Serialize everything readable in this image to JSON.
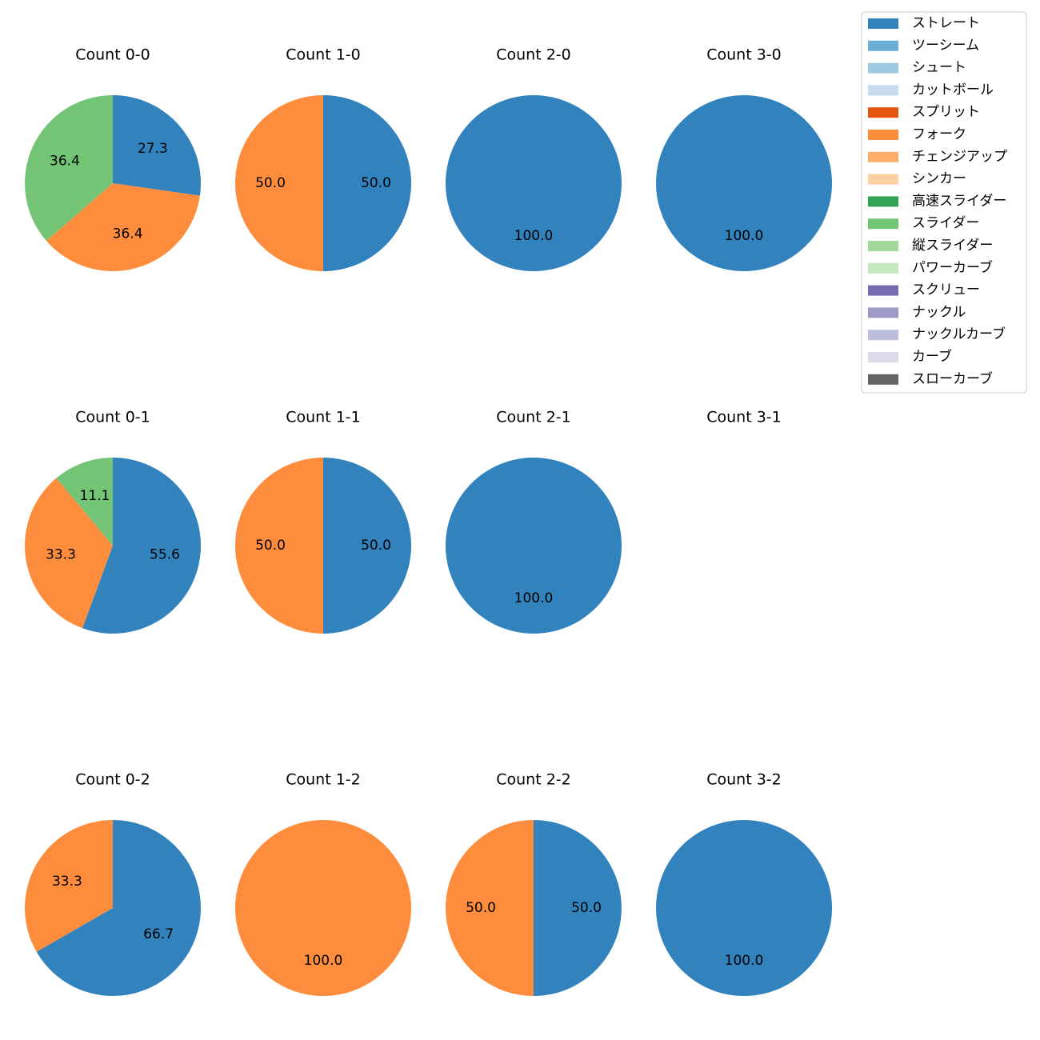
{
  "chart_data": [
    {
      "type": "pie",
      "title": "Count 0-0",
      "categories": [
        "ストレート",
        "フォーク",
        "スライダー"
      ],
      "values": [
        27.3,
        36.4,
        36.4
      ]
    },
    {
      "type": "pie",
      "title": "Count 1-0",
      "categories": [
        "ストレート",
        "フォーク"
      ],
      "values": [
        50,
        50
      ],
      "value_labels": [
        "50.0",
        "50.0"
      ]
    },
    {
      "type": "pie",
      "title": "Count 2-0",
      "categories": [
        "ストレート"
      ],
      "values": [
        100
      ],
      "value_labels": [
        "100.0"
      ]
    },
    {
      "type": "pie",
      "title": "Count 3-0",
      "categories": [
        "ストレート"
      ],
      "values": [
        100
      ],
      "value_labels": [
        "100.0"
      ]
    },
    {
      "type": "pie",
      "title": "Count 0-1",
      "categories": [
        "ストレート",
        "フォーク",
        "スライダー"
      ],
      "values": [
        55.6,
        33.3,
        11.1
      ]
    },
    {
      "type": "pie",
      "title": "Count 1-1",
      "categories": [
        "ストレート",
        "フォーク"
      ],
      "values": [
        50,
        50
      ],
      "value_labels": [
        "50.0",
        "50.0"
      ]
    },
    {
      "type": "pie",
      "title": "Count 2-1",
      "categories": [
        "ストレート"
      ],
      "values": [
        100
      ],
      "value_labels": [
        "100.0"
      ]
    },
    {
      "type": "pie",
      "title": "Count 3-1",
      "categories": [],
      "values": []
    },
    {
      "type": "pie",
      "title": "Count 0-2",
      "categories": [
        "ストレート",
        "フォーク"
      ],
      "values": [
        66.7,
        33.3
      ]
    },
    {
      "type": "pie",
      "title": "Count 1-2",
      "categories": [
        "フォーク"
      ],
      "values": [
        100
      ],
      "value_labels": [
        "100.0"
      ]
    },
    {
      "type": "pie",
      "title": "Count 2-2",
      "categories": [
        "ストレート",
        "フォーク"
      ],
      "values": [
        50,
        50
      ],
      "value_labels": [
        "50.0",
        "50.0"
      ]
    },
    {
      "type": "pie",
      "title": "Count 3-2",
      "categories": [
        "ストレート"
      ],
      "values": [
        100
      ],
      "value_labels": [
        "100.0"
      ]
    }
  ],
  "legend": {
    "categories": [
      "ストレート",
      "ツーシーム",
      "シュート",
      "カットボール",
      "スプリット",
      "フォーク",
      "チェンジアップ",
      "シンカー",
      "高速スライダー",
      "スライダー",
      "縦スライダー",
      "パワーカーブ",
      "スクリュー",
      "ナックル",
      "ナックルカーブ",
      "カーブ",
      "スローカーブ"
    ],
    "colors": [
      "#3182bd",
      "#6baed6",
      "#9ecae1",
      "#c6dbef",
      "#e6550d",
      "#fd8d3c",
      "#fdae6b",
      "#fdd0a2",
      "#31a354",
      "#74c476",
      "#a1d99b",
      "#c7e9c0",
      "#756bb1",
      "#9e9ac8",
      "#bcbddc",
      "#dadaeb",
      "#636363"
    ]
  }
}
